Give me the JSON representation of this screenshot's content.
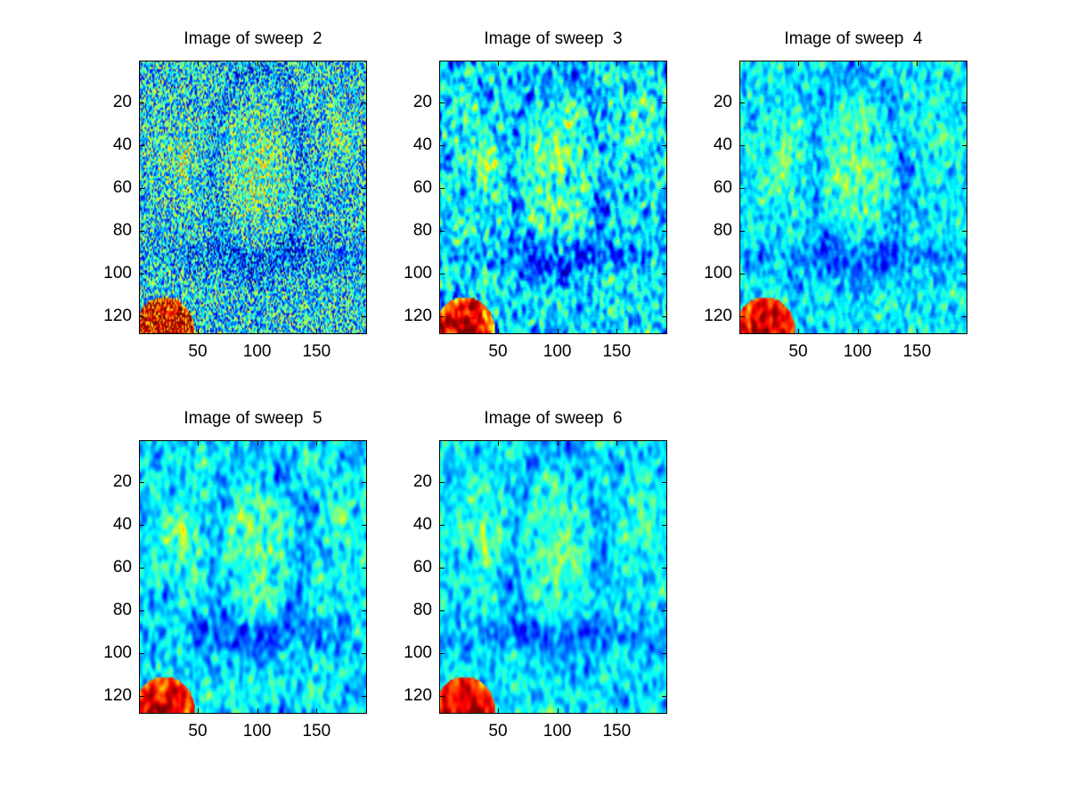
{
  "chart_data": [
    {
      "type": "heatmap",
      "title": "Image of sweep  2",
      "xlim": [
        0.5,
        192.5
      ],
      "ylim": [
        0.5,
        128.5
      ],
      "y_reversed": true,
      "xticks": [
        50,
        100,
        150
      ],
      "yticks": [
        20,
        40,
        60,
        80,
        100,
        120
      ],
      "colormap": "jet",
      "noise_level": 1.0
    },
    {
      "type": "heatmap",
      "title": "Image of sweep  3",
      "xlim": [
        0.5,
        192.5
      ],
      "ylim": [
        0.5,
        128.5
      ],
      "y_reversed": true,
      "xticks": [
        50,
        100,
        150
      ],
      "yticks": [
        20,
        40,
        60,
        80,
        100,
        120
      ],
      "colormap": "jet",
      "noise_level": 0.62
    },
    {
      "type": "heatmap",
      "title": "Image of sweep  4",
      "xlim": [
        0.5,
        192.5
      ],
      "ylim": [
        0.5,
        128.5
      ],
      "y_reversed": true,
      "xticks": [
        50,
        100,
        150
      ],
      "yticks": [
        20,
        40,
        60,
        80,
        100,
        120
      ],
      "colormap": "jet",
      "noise_level": 0.45
    },
    {
      "type": "heatmap",
      "title": "Image of sweep  5",
      "xlim": [
        0.5,
        192.5
      ],
      "ylim": [
        0.5,
        128.5
      ],
      "y_reversed": true,
      "xticks": [
        50,
        100,
        150
      ],
      "yticks": [
        20,
        40,
        60,
        80,
        100,
        120
      ],
      "colormap": "jet",
      "noise_level": 0.3
    },
    {
      "type": "heatmap",
      "title": "Image of sweep  6",
      "xlim": [
        0.5,
        192.5
      ],
      "ylim": [
        0.5,
        128.5
      ],
      "y_reversed": true,
      "xticks": [
        50,
        100,
        150
      ],
      "yticks": [
        20,
        40,
        60,
        80,
        100,
        120
      ],
      "colormap": "jet",
      "noise_level": 0.27
    }
  ]
}
